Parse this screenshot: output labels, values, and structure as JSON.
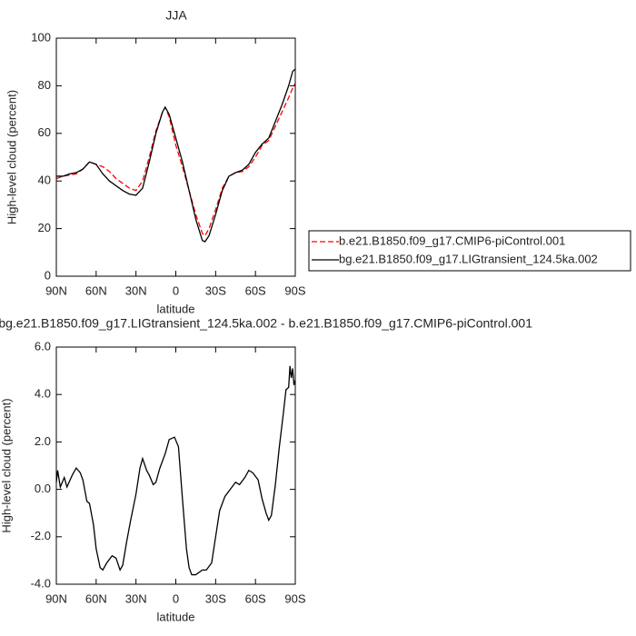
{
  "chart_data": [
    {
      "type": "line",
      "title": "JJA",
      "x_label": "latitude",
      "y_label": "High-level cloud (percent)",
      "xlim": [
        90,
        -90
      ],
      "xticks": [
        {
          "value": 90,
          "label": "90N"
        },
        {
          "value": 60,
          "label": "60N"
        },
        {
          "value": 30,
          "label": "30N"
        },
        0,
        {
          "value": -30,
          "label": "30S"
        },
        {
          "value": -60,
          "label": "60S"
        },
        {
          "value": -90,
          "label": "90S"
        }
      ],
      "ylim": [
        0,
        100
      ],
      "yticks": [
        0,
        20,
        40,
        60,
        80,
        100
      ],
      "legend": "right",
      "x": [
        90,
        85,
        80,
        75,
        70,
        65,
        60,
        55,
        50,
        45,
        40,
        35,
        30,
        25,
        20,
        15,
        10,
        8,
        5,
        0,
        -5,
        -10,
        -15,
        -20,
        -22,
        -25,
        -30,
        -35,
        -40,
        -45,
        -50,
        -55,
        -60,
        -65,
        -70,
        -75,
        -80,
        -85,
        -88,
        -90
      ],
      "series": [
        {
          "name": "b.e21.B1850.f09_g17.CMIP6-piControl.001",
          "color": "#ff0000",
          "line_style": "dashed",
          "values": [
            41,
            42,
            42.5,
            43,
            45,
            48,
            47,
            46,
            44,
            41,
            39,
            37,
            36,
            40,
            50,
            61,
            69,
            71,
            67,
            55,
            46,
            36,
            26,
            18,
            17,
            20,
            28,
            37,
            42,
            43.5,
            44,
            46,
            50,
            55,
            57,
            63,
            69,
            75,
            79,
            81
          ]
        },
        {
          "name": "bg.e21.B1850.f09_g17.LIGtransient_124.5ka.002",
          "color": "#000000",
          "line_style": "solid",
          "values": [
            42,
            42,
            43,
            43.5,
            45,
            48,
            47,
            43,
            40,
            38,
            36,
            34.5,
            34,
            37,
            48,
            60,
            69,
            71,
            68,
            58,
            48,
            36,
            24,
            15,
            14.5,
            17,
            26,
            36,
            42,
            43.5,
            44.5,
            47,
            52,
            55.5,
            58,
            65,
            72,
            80,
            86,
            87
          ]
        }
      ]
    },
    {
      "type": "line",
      "title": "bg.e21.B1850.f09_g17.LIGtransient_124.5ka.002 - b.e21.B1850.f09_g17.CMIP6-piControl.001",
      "x_label": "latitude",
      "y_label": "High-level cloud (percent)",
      "xlim": [
        90,
        -90
      ],
      "xticks": [
        {
          "value": 90,
          "label": "90N"
        },
        {
          "value": 60,
          "label": "60N"
        },
        {
          "value": 30,
          "label": "30N"
        },
        0,
        {
          "value": -30,
          "label": "30S"
        },
        {
          "value": -60,
          "label": "60S"
        },
        {
          "value": -90,
          "label": "90S"
        }
      ],
      "ylim": [
        -4,
        6
      ],
      "yticks": [
        {
          "value": -4,
          "label": "-4.0"
        },
        {
          "value": -2,
          "label": "-2.0"
        },
        {
          "value": 0,
          "label": "0.0"
        },
        {
          "value": 2,
          "label": "2.0"
        },
        {
          "value": 4,
          "label": "4.0"
        },
        {
          "value": 6,
          "label": "6.0"
        }
      ],
      "x": [
        90,
        89,
        87,
        84,
        82,
        78,
        75,
        72,
        70,
        67,
        65,
        62,
        60,
        57,
        55,
        52,
        48,
        45,
        42,
        40,
        37,
        34,
        30,
        27,
        25,
        22,
        20,
        17,
        15,
        12,
        8,
        5,
        1,
        -2,
        -5,
        -8,
        -10,
        -12,
        -15,
        -20,
        -23,
        -27,
        -30,
        -33,
        -37,
        -41,
        -45,
        -48,
        -52,
        -55,
        -58,
        -62,
        -65,
        -68,
        -70,
        -72,
        -75,
        -78,
        -81,
        -83,
        -85,
        -86,
        -87,
        -88,
        -89,
        -90
      ],
      "series": [
        {
          "color": "#000000",
          "line_style": "solid",
          "values": [
            0.3,
            0.8,
            0.1,
            0.5,
            0.1,
            0.6,
            0.9,
            0.7,
            0.4,
            -0.5,
            -0.6,
            -1.5,
            -2.5,
            -3.3,
            -3.4,
            -3.1,
            -2.8,
            -2.9,
            -3.4,
            -3.2,
            -2.2,
            -1.3,
            -0.2,
            0.9,
            1.3,
            0.8,
            0.6,
            0.2,
            0.3,
            0.9,
            1.5,
            2.1,
            2.2,
            1.8,
            -0.4,
            -2.5,
            -3.3,
            -3.6,
            -3.6,
            -3.4,
            -3.4,
            -3.1,
            -2.0,
            -0.9,
            -0.3,
            0.0,
            0.3,
            0.2,
            0.5,
            0.8,
            0.7,
            0.4,
            -0.4,
            -1.0,
            -1.3,
            -1.1,
            0.2,
            1.8,
            3.2,
            4.2,
            4.3,
            5.2,
            4.7,
            5.1,
            4.4,
            4.6
          ]
        }
      ]
    }
  ]
}
